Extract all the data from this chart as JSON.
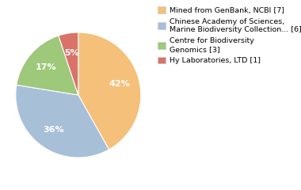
{
  "labels": [
    "Mined from GenBank, NCBI [7]",
    "Chinese Academy of Sciences,\nMarine Biodiversity Collection... [6]",
    "Centre for Biodiversity\nGenomics [3]",
    "Hy Laboratories, LTD [1]"
  ],
  "values": [
    41,
    35,
    17,
    5
  ],
  "colors": [
    "#f5c07a",
    "#a8bfd8",
    "#9ec87a",
    "#d9736a"
  ],
  "startangle": 90,
  "legend_labels": [
    "Mined from GenBank, NCBI [7]",
    "Chinese Academy of Sciences,\nMarine Biodiversity Collection... [6]",
    "Centre for Biodiversity\nGenomics [3]",
    "Hy Laboratories, LTD [1]"
  ],
  "pct_fontsize": 8,
  "legend_fontsize": 6.8
}
